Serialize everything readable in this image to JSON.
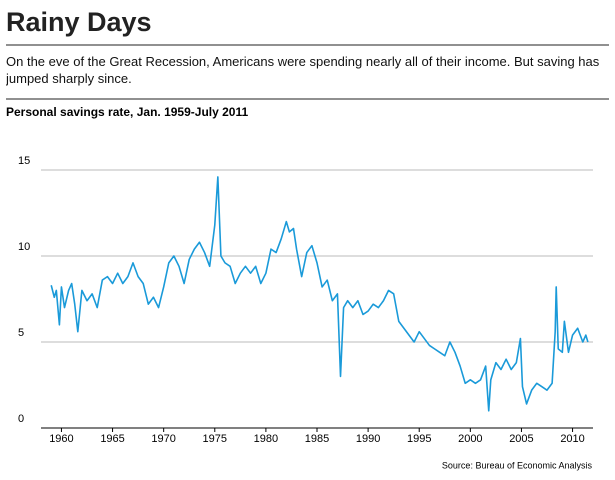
{
  "chart_data": {
    "type": "line",
    "title": "Rainy Days",
    "subtitle": "On the eve of the Great Recession, Americans were spending nearly all of their income. But saving has jumped sharply since.",
    "chart_label": "Personal savings rate, Jan. 1959-July 2011",
    "source": "Source: Bureau of Economic Analysis",
    "color": "#1a9ad9",
    "xlim": [
      1958,
      2012
    ],
    "ylim": [
      0,
      15
    ],
    "xticks": [
      1960,
      1965,
      1970,
      1975,
      1980,
      1985,
      1990,
      1995,
      2000,
      2005,
      2010
    ],
    "yticks": [
      0,
      5,
      10,
      15
    ],
    "grid": true,
    "x": [
      1959.0,
      1959.3,
      1959.5,
      1959.8,
      1960.0,
      1960.3,
      1960.7,
      1961.0,
      1961.3,
      1961.6,
      1962.0,
      1962.5,
      1963.0,
      1963.5,
      1964.0,
      1964.5,
      1965.0,
      1965.5,
      1966.0,
      1966.5,
      1967.0,
      1967.5,
      1968.0,
      1968.5,
      1969.0,
      1969.5,
      1970.0,
      1970.5,
      1971.0,
      1971.5,
      1972.0,
      1972.5,
      1973.0,
      1973.5,
      1974.0,
      1974.5,
      1975.0,
      1975.3,
      1975.6,
      1976.0,
      1976.5,
      1977.0,
      1977.5,
      1978.0,
      1978.5,
      1979.0,
      1979.5,
      1980.0,
      1980.5,
      1981.0,
      1981.5,
      1982.0,
      1982.3,
      1982.7,
      1983.0,
      1983.5,
      1984.0,
      1984.5,
      1985.0,
      1985.5,
      1986.0,
      1986.5,
      1987.0,
      1987.3,
      1987.6,
      1988.0,
      1988.5,
      1989.0,
      1989.5,
      1990.0,
      1990.5,
      1991.0,
      1991.5,
      1992.0,
      1992.5,
      1993.0,
      1993.5,
      1994.0,
      1994.5,
      1995.0,
      1995.5,
      1996.0,
      1996.5,
      1997.0,
      1997.5,
      1998.0,
      1998.5,
      1999.0,
      1999.5,
      2000.0,
      2000.5,
      2001.0,
      2001.5,
      2001.8,
      2002.0,
      2002.5,
      2003.0,
      2003.5,
      2004.0,
      2004.5,
      2004.9,
      2005.1,
      2005.5,
      2006.0,
      2006.5,
      2007.0,
      2007.5,
      2008.0,
      2008.3,
      2008.4,
      2008.6,
      2009.0,
      2009.2,
      2009.6,
      2010.0,
      2010.5,
      2011.0,
      2011.3,
      2011.5
    ],
    "values": [
      8.3,
      7.6,
      8.0,
      6.0,
      8.2,
      7.0,
      8.0,
      8.4,
      7.2,
      5.6,
      8.0,
      7.4,
      7.8,
      7.0,
      8.6,
      8.8,
      8.4,
      9.0,
      8.4,
      8.8,
      9.6,
      8.8,
      8.4,
      7.2,
      7.6,
      7.0,
      8.2,
      9.6,
      10.0,
      9.4,
      8.4,
      9.8,
      10.4,
      10.8,
      10.2,
      9.4,
      11.8,
      14.6,
      10.0,
      9.6,
      9.4,
      8.4,
      9.0,
      9.4,
      9.0,
      9.4,
      8.4,
      9.0,
      10.4,
      10.2,
      11.0,
      12.0,
      11.4,
      11.6,
      10.4,
      8.8,
      10.2,
      10.6,
      9.6,
      8.2,
      8.6,
      7.4,
      7.8,
      3.0,
      7.0,
      7.4,
      7.0,
      7.4,
      6.6,
      6.8,
      7.2,
      7.0,
      7.4,
      8.0,
      7.8,
      6.2,
      5.8,
      5.4,
      5.0,
      5.6,
      5.2,
      4.8,
      4.6,
      4.4,
      4.2,
      5.0,
      4.4,
      3.6,
      2.6,
      2.8,
      2.6,
      2.8,
      3.6,
      1.0,
      2.8,
      3.8,
      3.4,
      4.0,
      3.4,
      3.8,
      5.2,
      2.4,
      1.4,
      2.2,
      2.6,
      2.4,
      2.2,
      2.6,
      5.6,
      8.2,
      4.6,
      4.4,
      6.2,
      4.4,
      5.4,
      5.8,
      5.0,
      5.4,
      5.0
    ]
  }
}
